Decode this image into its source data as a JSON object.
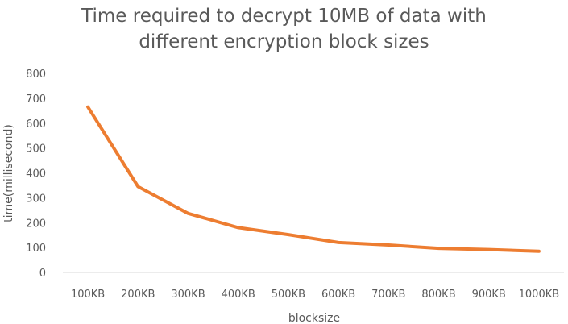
{
  "chart_data": {
    "type": "line",
    "title_line1": "Time required to decrypt 10MB of data with",
    "title_line2": "different encryption block sizes",
    "xlabel": "blocksize",
    "ylabel": "time(millisecond)",
    "categories": [
      "100KB",
      "200KB",
      "300KB",
      "400KB",
      "500KB",
      "600KB",
      "700KB",
      "800KB",
      "900KB",
      "1000KB"
    ],
    "values": [
      665,
      345,
      237,
      180,
      152,
      120,
      110,
      97,
      92,
      85
    ],
    "ylim": [
      0,
      800
    ],
    "yticks": [
      0,
      100,
      200,
      300,
      400,
      500,
      600,
      700,
      800
    ],
    "grid": false,
    "line_color": "#ED7D31",
    "axis_color": "#D9D9D9"
  }
}
